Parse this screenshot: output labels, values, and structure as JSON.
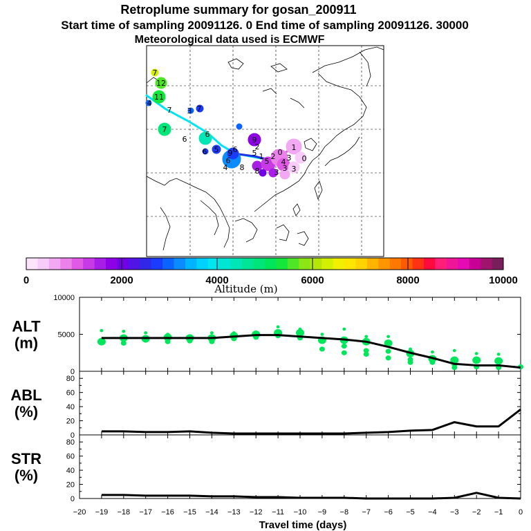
{
  "title": {
    "line1": "Retroplume summary for gosan_200911",
    "line2": "Start time of sampling 20091126.     0     End time of sampling 20091126. 30000",
    "line3": "Meteorological data used is ECMWF"
  },
  "colorbar": {
    "label": "Altitude  (m)",
    "ticks": [
      "0",
      "2000",
      "4000",
      "6000",
      "8000",
      "10000"
    ],
    "colors": [
      "#fde4fd",
      "#f8ccf8",
      "#f2a8f2",
      "#ea82ea",
      "#e05ae6",
      "#c83ae6",
      "#a81ee6",
      "#8e00e6",
      "#7000e6",
      "#5014e6",
      "#3028e6",
      "#1a3cff",
      "#0a64ff",
      "#0a8cff",
      "#00b4ff",
      "#00d2ff",
      "#00e6f0",
      "#00e6d2",
      "#00e6b4",
      "#00e696",
      "#00e678",
      "#00e65a",
      "#14e63c",
      "#50e628",
      "#8ce614",
      "#b4e60a",
      "#d2f000",
      "#f0f000",
      "#ffe600",
      "#ffd200",
      "#ffb400",
      "#ff9600",
      "#ff7800",
      "#ff5a00",
      "#ff3214",
      "#ff0a3c",
      "#ff1e78",
      "#f01496",
      "#e60ab4",
      "#c80096",
      "#a0146e",
      "#781e5a"
    ]
  },
  "map": {
    "trajectory_labels": [
      "7",
      "12",
      "11",
      "4",
      "7",
      "3",
      "7",
      "7",
      "6",
      "6",
      "5",
      "6",
      "9",
      "9",
      "5",
      "6",
      "4",
      "8",
      "6",
      "2",
      "1",
      "0",
      "5",
      "4",
      "3",
      "8",
      "3",
      "2",
      "1",
      "3",
      "0",
      "3"
    ]
  },
  "chart_data": [
    {
      "type": "line",
      "panel": "ALT",
      "ylabel_line1": "ALT",
      "ylabel_line2": "(m)",
      "ylim": [
        0,
        10000
      ],
      "yticks": [
        "10000",
        "5000",
        "0"
      ],
      "x": [
        -19,
        -18,
        -17,
        -16,
        -15,
        -14,
        -13,
        -12,
        -11,
        -10,
        -9,
        -8,
        -7,
        -6,
        -5,
        -4,
        -3,
        -2,
        -1,
        0
      ],
      "series": [
        {
          "name": "mean altitude",
          "values": [
            4500,
            4500,
            4500,
            4500,
            4500,
            4500,
            4700,
            4900,
            4900,
            4700,
            4500,
            4300,
            4000,
            3300,
            2500,
            1800,
            1000,
            800,
            800,
            500
          ]
        }
      ],
      "scatter": [
        {
          "x": -19,
          "values": [
            5500,
            4000,
            4200
          ]
        },
        {
          "x": -18,
          "values": [
            5400,
            4500,
            4300,
            3800
          ]
        },
        {
          "x": -17,
          "values": [
            5200,
            4400,
            4200
          ]
        },
        {
          "x": -16,
          "values": [
            5000,
            4600,
            4000
          ]
        },
        {
          "x": -15,
          "values": [
            4800,
            4500,
            4100
          ]
        },
        {
          "x": -14,
          "values": [
            5200,
            4500,
            4000
          ]
        },
        {
          "x": -13,
          "values": [
            5200,
            4800,
            4400
          ]
        },
        {
          "x": -12,
          "values": [
            5300,
            5000,
            4600
          ]
        },
        {
          "x": -11,
          "values": [
            6000,
            5200,
            4800
          ]
        },
        {
          "x": -10,
          "values": [
            5700,
            5200,
            4500
          ]
        },
        {
          "x": -9,
          "values": [
            5000,
            4200,
            3000
          ]
        },
        {
          "x": -8,
          "values": [
            5700,
            4200,
            3400,
            2500
          ]
        },
        {
          "x": -7,
          "values": [
            4700,
            4000,
            2800,
            2300
          ]
        },
        {
          "x": -6,
          "values": [
            4700,
            3800,
            2700,
            1800
          ]
        },
        {
          "x": -5,
          "values": [
            3000,
            2400,
            1600,
            1200
          ]
        },
        {
          "x": -4,
          "values": [
            2600,
            1700,
            1200
          ]
        },
        {
          "x": -3,
          "values": [
            2800,
            1500,
            900,
            500
          ]
        },
        {
          "x": -2,
          "values": [
            2400,
            1500,
            600
          ]
        },
        {
          "x": -1,
          "values": [
            2300,
            1400,
            700,
            500
          ]
        },
        {
          "x": 0,
          "values": [
            600
          ]
        }
      ],
      "scatter_color": "#00e65a"
    },
    {
      "type": "line",
      "panel": "ABL",
      "ylabel_line1": "ABL",
      "ylabel_line2": "(%)",
      "ylim": [
        0,
        90
      ],
      "yticks": [
        "80",
        "60",
        "40",
        "20",
        "0"
      ],
      "x": [
        -19,
        -18,
        -17,
        -16,
        -15,
        -14,
        -13,
        -12,
        -11,
        -10,
        -9,
        -8,
        -7,
        -6,
        -5,
        -4,
        -3,
        -2,
        -1,
        0
      ],
      "series": [
        {
          "name": "fraction in ABL",
          "values": [
            5,
            5,
            4,
            4,
            5,
            3,
            2,
            2,
            2,
            2,
            2,
            2,
            3,
            4,
            6,
            7,
            18,
            12,
            12,
            36
          ]
        }
      ]
    },
    {
      "type": "line",
      "panel": "STR",
      "ylabel_line1": "STR",
      "ylabel_line2": "(%)",
      "ylim": [
        0,
        90
      ],
      "yticks": [
        "80",
        "60",
        "40",
        "20",
        "0"
      ],
      "x": [
        -19,
        -18,
        -17,
        -16,
        -15,
        -14,
        -13,
        -12,
        -11,
        -10,
        -9,
        -8,
        -7,
        -6,
        -5,
        -4,
        -3,
        -2,
        -1,
        0
      ],
      "series": [
        {
          "name": "fraction in stratosphere",
          "values": [
            5,
            5,
            4,
            4,
            4,
            3,
            3,
            2,
            2,
            1,
            1,
            1,
            0,
            0,
            0,
            0,
            1,
            8,
            1,
            0
          ]
        }
      ],
      "xlabel": "Travel time (days)",
      "xticks": [
        "−20",
        "−19",
        "−18",
        "−17",
        "−16",
        "−15",
        "−14",
        "−13",
        "−12",
        "−11",
        "−10",
        "−9",
        "−8",
        "−7",
        "−6",
        "−5",
        "−4",
        "−3",
        "−2",
        "−1",
        "0"
      ]
    }
  ]
}
